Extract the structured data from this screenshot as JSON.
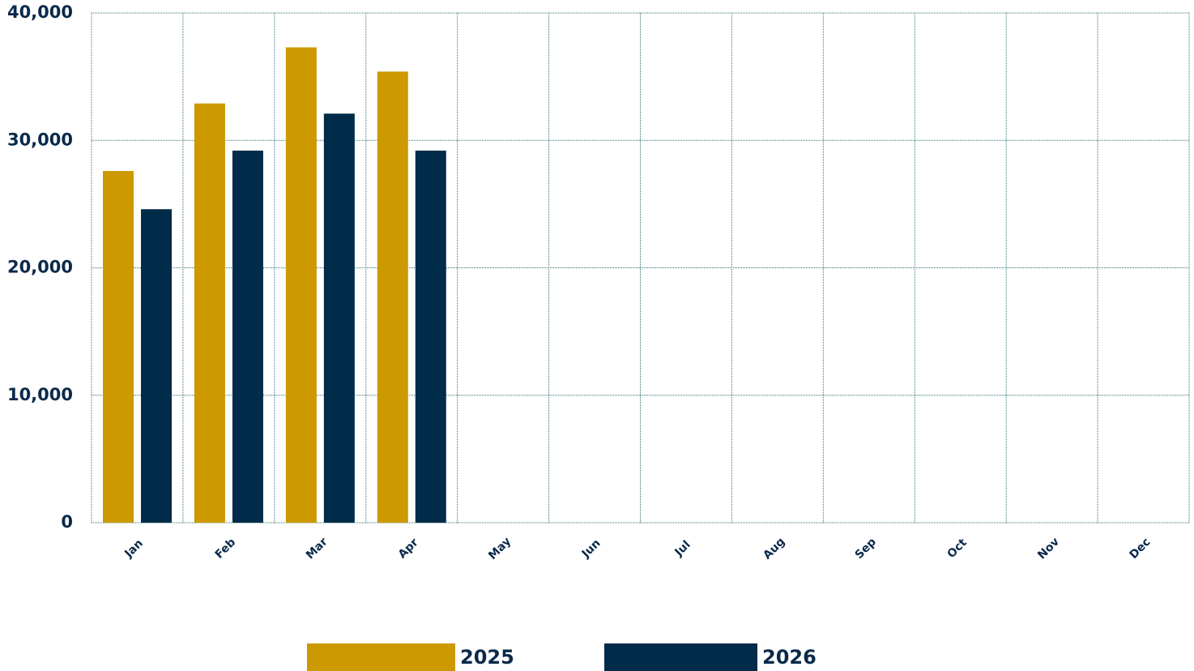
{
  "chart_data": {
    "type": "bar",
    "categories": [
      "Jan",
      "Feb",
      "Mar",
      "Apr",
      "May",
      "Jun",
      "Jul",
      "Aug",
      "Sep",
      "Oct",
      "Nov",
      "Dec"
    ],
    "series": [
      {
        "name": "2025",
        "color": "#cc9900",
        "values": [
          27600,
          32900,
          37300,
          35400,
          null,
          null,
          null,
          null,
          null,
          null,
          null,
          null
        ]
      },
      {
        "name": "2026",
        "color": "#002b49",
        "values": [
          24600,
          29200,
          32100,
          29200,
          null,
          null,
          null,
          null,
          null,
          null,
          null,
          null
        ]
      }
    ],
    "ylim": [
      0,
      40000
    ],
    "yticks": [
      {
        "value": 0,
        "label": "0"
      },
      {
        "value": 10000,
        "label": "10,000"
      },
      {
        "value": 20000,
        "label": "20,000"
      },
      {
        "value": 30000,
        "label": "30,000"
      },
      {
        "value": 40000,
        "label": "40,000"
      }
    ],
    "grid": true
  }
}
